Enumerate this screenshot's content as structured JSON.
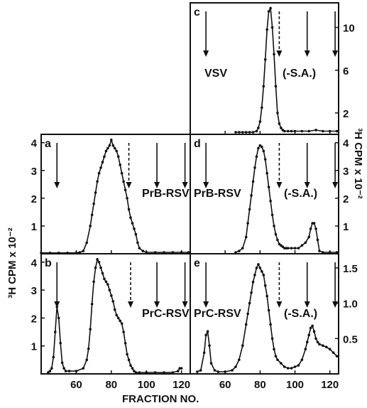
{
  "figure": {
    "xlabel": "FRACTION NO.",
    "ylabel_left": "³H CPM x 10⁻²",
    "ylabel_right": "³H CPM x 10⁻²",
    "x_ticks": [
      60,
      80,
      100,
      120
    ]
  },
  "chart_data": [
    {
      "panel": "c",
      "type": "line",
      "label": "VSV",
      "annotation": "(-S.A.)",
      "xlim": [
        40,
        125
      ],
      "ylim": [
        0,
        12.3
      ],
      "yticks": [
        2,
        6,
        10
      ],
      "ytick_labels": [
        "2",
        "6",
        "10"
      ],
      "yaxis_side": "right",
      "arrows": [
        {
          "x": 49,
          "style": "solid"
        },
        {
          "x": 91,
          "style": "dashed"
        },
        {
          "x": 107,
          "style": "solid"
        },
        {
          "x": 123,
          "style": "solid"
        }
      ],
      "series": [
        {
          "x": [
            66,
            68,
            70,
            72,
            74,
            76,
            78,
            79,
            80,
            81,
            82,
            83,
            84,
            85,
            86,
            87,
            88,
            89,
            90,
            91,
            92,
            93,
            94,
            96,
            98,
            100,
            104,
            108,
            112,
            116,
            120,
            124
          ],
          "y": [
            0.2,
            0.2,
            0.2,
            0.2,
            0.2,
            0.2,
            0.3,
            0.6,
            1.2,
            2.5,
            4.5,
            7.0,
            9.8,
            11.5,
            11.8,
            10.0,
            7.5,
            4.5,
            2.0,
            1.0,
            0.6,
            0.4,
            0.3,
            0.3,
            0.3,
            0.3,
            0.3,
            0.3,
            0.4,
            0.3,
            0.3,
            0.3
          ]
        }
      ]
    },
    {
      "panel": "a",
      "type": "line",
      "label": "PrB-RSV",
      "annotation": "",
      "xlim": [
        40,
        125
      ],
      "ylim": [
        0,
        4.3
      ],
      "yticks": [
        1,
        2,
        3,
        4
      ],
      "ytick_labels": [
        "1",
        "2",
        "3",
        "4"
      ],
      "yaxis_side": "left",
      "arrows": [
        {
          "x": 49,
          "style": "solid"
        },
        {
          "x": 90,
          "style": "dashed"
        },
        {
          "x": 106,
          "style": "solid"
        },
        {
          "x": 122,
          "style": "solid"
        }
      ],
      "series": [
        {
          "x": [
            40,
            45,
            50,
            55,
            60,
            62,
            64,
            66,
            68,
            69,
            70,
            71,
            72,
            73,
            74,
            75,
            76,
            77,
            78,
            79,
            80,
            81,
            82,
            83,
            84,
            85,
            86,
            87,
            88,
            89,
            90,
            91,
            92,
            93,
            94,
            95,
            96,
            98,
            100,
            105,
            110,
            115,
            120,
            124
          ],
          "y": [
            0.03,
            0.03,
            0.03,
            0.03,
            0.03,
            0.05,
            0.1,
            0.4,
            1.0,
            1.4,
            1.8,
            2.2,
            2.6,
            2.9,
            3.1,
            3.3,
            3.5,
            3.7,
            3.8,
            3.9,
            4.1,
            3.9,
            3.8,
            3.7,
            3.5,
            3.2,
            2.9,
            2.6,
            2.3,
            2.0,
            1.6,
            1.3,
            1.1,
            0.9,
            0.7,
            0.4,
            0.2,
            0.1,
            0.05,
            0.05,
            0.05,
            0.05,
            0.05,
            0.05
          ]
        }
      ]
    },
    {
      "panel": "d",
      "type": "line",
      "label": "PrB-RSV",
      "annotation": "(-S.A.)",
      "xlim": [
        40,
        125
      ],
      "ylim": [
        0,
        4.3
      ],
      "yticks": [
        1,
        2,
        3,
        4
      ],
      "ytick_labels": [
        "1",
        "2",
        "3",
        "4"
      ],
      "yaxis_side": "right",
      "arrows": [
        {
          "x": 49,
          "style": "solid"
        },
        {
          "x": 91,
          "style": "dashed"
        },
        {
          "x": 107,
          "style": "solid"
        },
        {
          "x": 123,
          "style": "solid"
        }
      ],
      "series": [
        {
          "x": [
            66,
            68,
            70,
            72,
            73,
            74,
            75,
            76,
            77,
            78,
            79,
            80,
            81,
            82,
            83,
            84,
            85,
            86,
            87,
            88,
            89,
            90,
            91,
            92,
            93,
            94,
            95,
            96,
            98,
            100,
            102,
            104,
            106,
            108,
            109,
            110,
            111,
            112,
            113,
            114,
            116,
            120,
            124
          ],
          "y": [
            0.05,
            0.1,
            0.2,
            0.6,
            1.1,
            1.6,
            2.1,
            2.6,
            3.1,
            3.5,
            3.8,
            3.9,
            3.85,
            3.7,
            3.4,
            2.9,
            2.4,
            1.9,
            1.4,
            1.0,
            0.7,
            0.5,
            0.35,
            0.3,
            0.25,
            0.2,
            0.2,
            0.2,
            0.2,
            0.2,
            0.2,
            0.3,
            0.4,
            0.6,
            0.9,
            1.1,
            1.1,
            0.9,
            0.5,
            0.1,
            0.05,
            0.05,
            0.05
          ]
        }
      ]
    },
    {
      "panel": "b",
      "type": "line",
      "label": "PrC-RSV",
      "annotation": "",
      "xlim": [
        40,
        125
      ],
      "ylim": [
        0,
        4.3
      ],
      "yticks": [
        1,
        2,
        3,
        4
      ],
      "ytick_labels": [
        "1",
        "2",
        "3",
        "4"
      ],
      "yaxis_side": "left",
      "arrows": [
        {
          "x": 49,
          "style": "solid"
        },
        {
          "x": 91,
          "style": "dashed"
        },
        {
          "x": 106,
          "style": "solid"
        },
        {
          "x": 122,
          "style": "solid"
        }
      ],
      "series": [
        {
          "x": [
            44,
            45,
            46,
            47,
            48,
            49,
            50,
            51,
            52,
            53,
            54,
            56,
            60,
            64,
            66,
            67,
            68,
            69,
            70,
            71,
            72,
            73,
            74,
            75,
            76,
            77,
            78,
            79,
            80,
            81,
            82,
            83,
            84,
            85,
            86,
            87,
            88,
            89,
            90,
            91,
            92,
            93,
            94,
            96,
            100,
            105,
            110,
            115,
            118,
            119,
            120
          ],
          "y": [
            0.05,
            0.1,
            0.2,
            0.6,
            1.5,
            2.4,
            2.0,
            1.1,
            0.4,
            0.2,
            0.1,
            0.1,
            0.1,
            0.2,
            0.5,
            0.9,
            1.6,
            2.5,
            3.3,
            3.8,
            4.1,
            4.0,
            3.8,
            3.6,
            3.4,
            3.3,
            3.2,
            3.0,
            2.8,
            2.6,
            2.3,
            2.1,
            2.0,
            1.9,
            1.8,
            1.5,
            1.1,
            0.7,
            0.5,
            0.3,
            0.2,
            0.1,
            0.05,
            0.05,
            0.05,
            0.05,
            0.05,
            0.05,
            0.1,
            0.2,
            0.2
          ]
        }
      ]
    },
    {
      "panel": "e",
      "type": "line",
      "label": "PrC-RSV",
      "annotation": "(-S.A.)",
      "xlim": [
        40,
        125
      ],
      "ylim": [
        0,
        1.7
      ],
      "yticks": [
        0.5,
        1.0,
        1.5
      ],
      "ytick_labels": [
        "0.5",
        "1.0",
        "1.5"
      ],
      "yaxis_side": "right",
      "arrows": [
        {
          "x": 49,
          "style": "solid"
        },
        {
          "x": 91,
          "style": "dashed"
        },
        {
          "x": 107,
          "style": "solid"
        },
        {
          "x": 123,
          "style": "solid"
        }
      ],
      "series": [
        {
          "x": [
            44,
            46,
            48,
            49,
            50,
            51,
            52,
            54,
            56,
            60,
            64,
            66,
            68,
            70,
            72,
            73,
            74,
            75,
            76,
            77,
            78,
            79,
            80,
            81,
            82,
            83,
            84,
            85,
            86,
            87,
            88,
            89,
            90,
            92,
            94,
            96,
            98,
            100,
            102,
            104,
            106,
            107,
            108,
            109,
            110,
            111,
            112,
            113,
            114,
            116,
            118,
            120,
            122,
            124
          ],
          "y": [
            0.03,
            0.05,
            0.3,
            0.55,
            0.6,
            0.4,
            0.15,
            0.05,
            0.03,
            0.03,
            0.05,
            0.1,
            0.2,
            0.4,
            0.7,
            0.85,
            1.0,
            1.15,
            1.3,
            1.4,
            1.5,
            1.55,
            1.5,
            1.45,
            1.4,
            1.25,
            1.1,
            0.9,
            0.7,
            0.5,
            0.35,
            0.25,
            0.2,
            0.15,
            0.1,
            0.08,
            0.08,
            0.1,
            0.12,
            0.2,
            0.35,
            0.45,
            0.55,
            0.65,
            0.68,
            0.6,
            0.5,
            0.45,
            0.42,
            0.4,
            0.38,
            0.35,
            0.3,
            0.25
          ]
        }
      ]
    }
  ]
}
